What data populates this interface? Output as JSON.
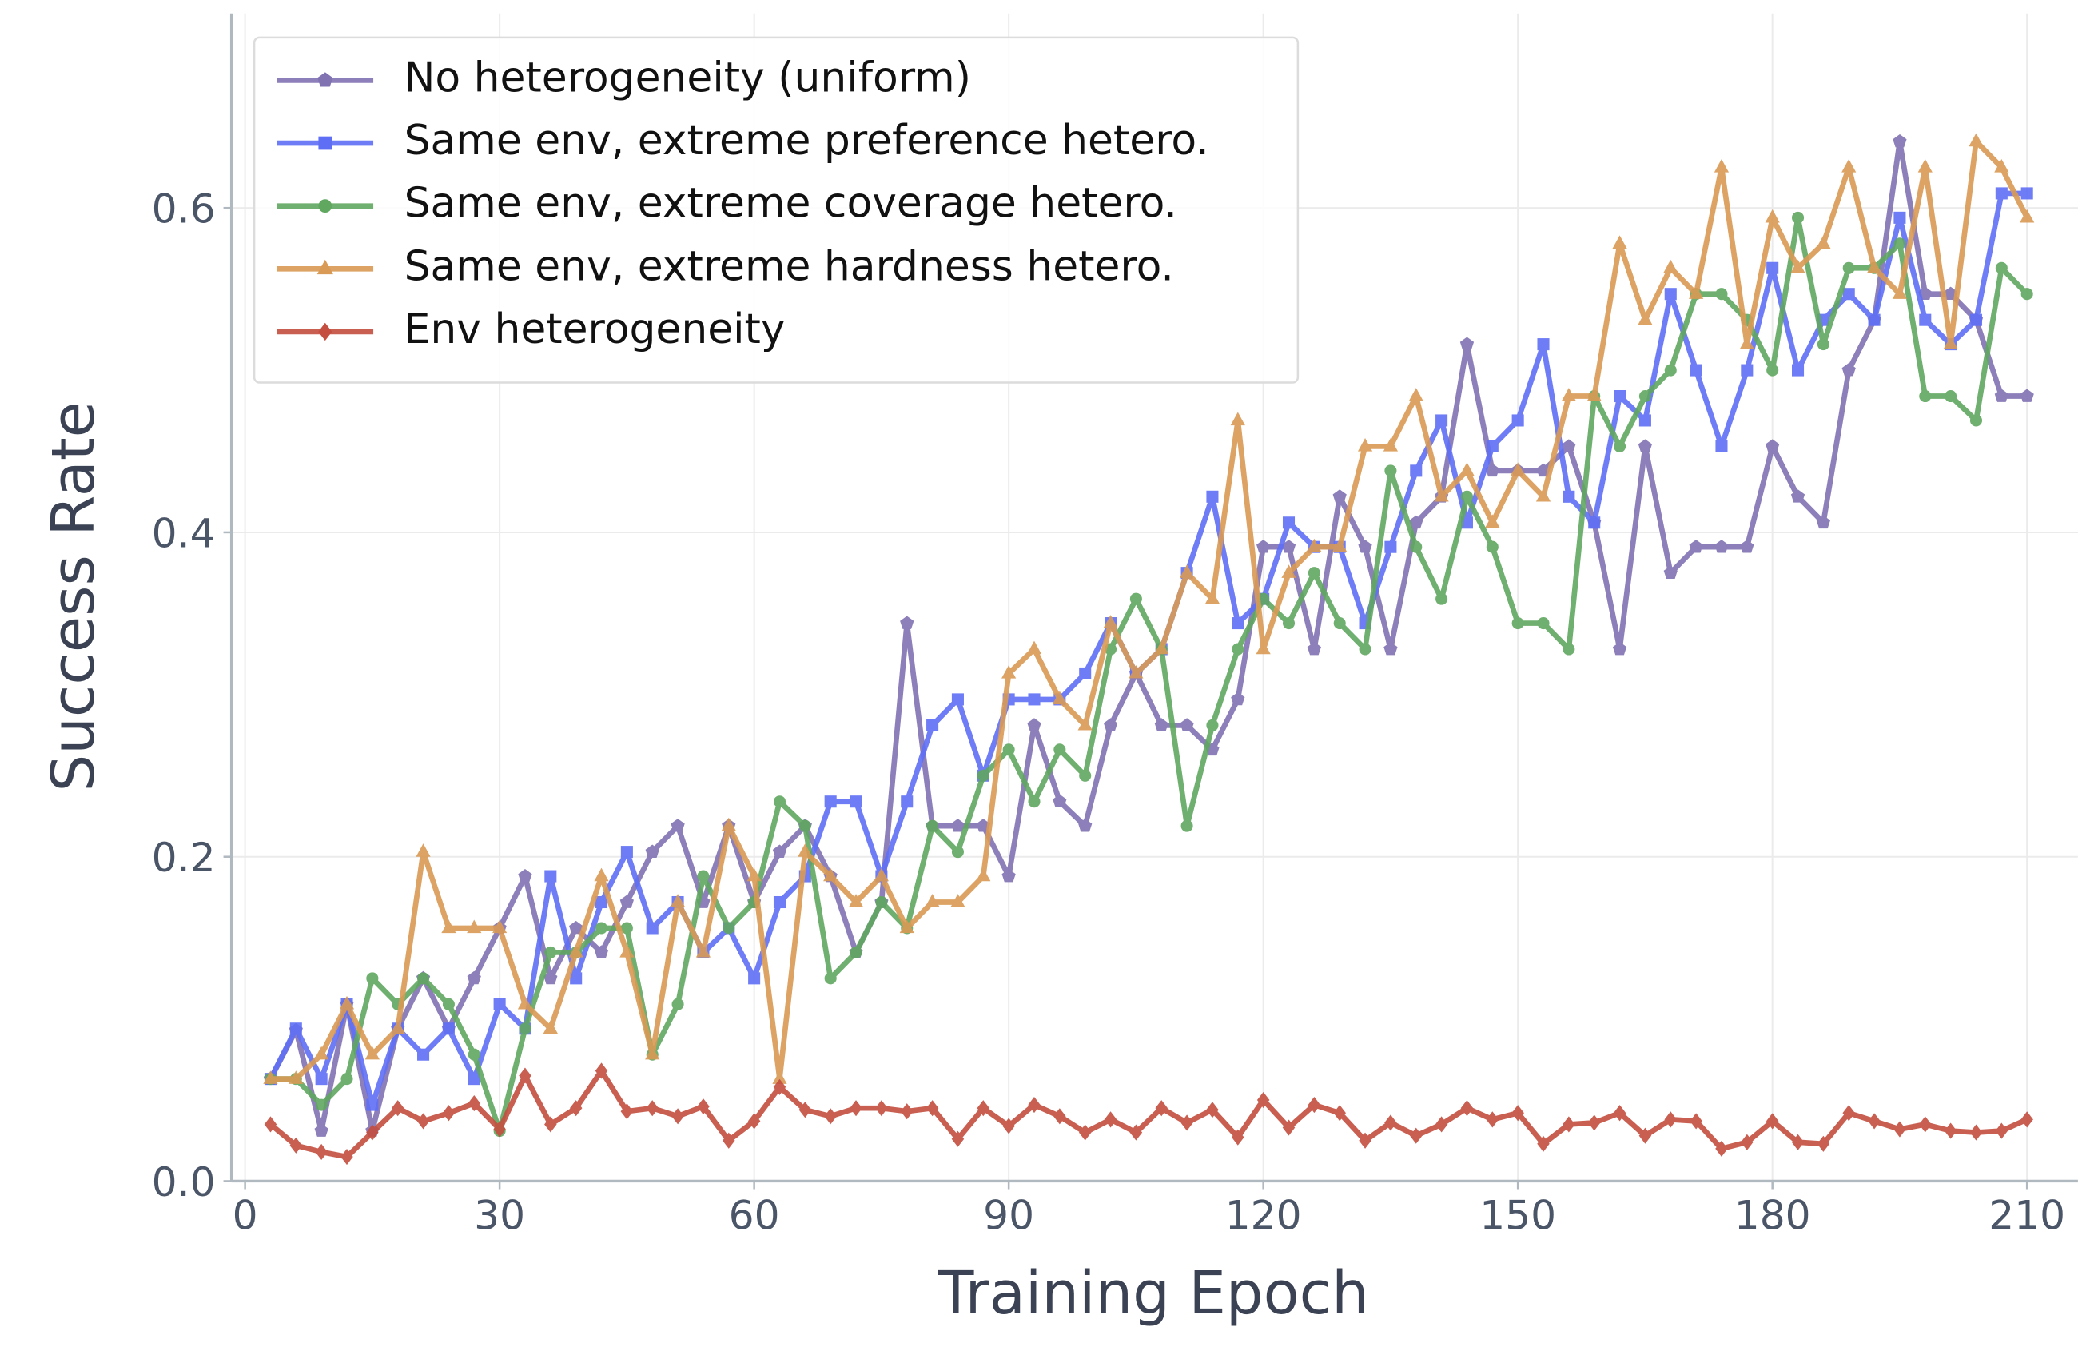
{
  "chart_data": {
    "type": "line",
    "x_label": "Training Epoch",
    "y_label": "Success Rate",
    "xlim": [
      -1.6,
      216
    ],
    "ylim": [
      0,
      0.72
    ],
    "xticks": [
      0,
      30,
      60,
      90,
      120,
      150,
      180,
      210
    ],
    "yticks": [
      {
        "value": 0,
        "label": "0.0"
      },
      0.2,
      0.4,
      0.6
    ],
    "grid": true,
    "legend": "upper left",
    "x": [
      3,
      6,
      9,
      12,
      15,
      18,
      21,
      24,
      27,
      30,
      33,
      36,
      39,
      42,
      45,
      48,
      51,
      54,
      57,
      60,
      63,
      66,
      69,
      72,
      75,
      78,
      81,
      84,
      87,
      90,
      93,
      96,
      99,
      102,
      105,
      108,
      111,
      114,
      117,
      120,
      123,
      126,
      129,
      132,
      135,
      138,
      141,
      144,
      147,
      150,
      153,
      156,
      159,
      162,
      165,
      168,
      171,
      174,
      177,
      180,
      183,
      186,
      189,
      192,
      195,
      198,
      201,
      204,
      207,
      210
    ],
    "series": [
      {
        "name": "No heterogeneity (uniform)",
        "color": "#8172b2",
        "marker": "pentagon",
        "values": [
          0.063,
          0.093,
          0.031,
          0.109,
          0.031,
          0.094,
          0.125,
          0.094,
          0.125,
          0.156,
          0.188,
          0.125,
          0.156,
          0.141,
          0.172,
          0.203,
          0.219,
          0.172,
          0.219,
          0.172,
          0.203,
          0.219,
          0.188,
          0.141,
          0.172,
          0.344,
          0.219,
          0.219,
          0.219,
          0.188,
          0.281,
          0.234,
          0.219,
          0.281,
          0.313,
          0.281,
          0.281,
          0.266,
          0.297,
          0.391,
          0.391,
          0.328,
          0.422,
          0.391,
          0.328,
          0.406,
          0.422,
          0.516,
          0.438,
          0.438,
          0.438,
          0.453,
          0.406,
          0.328,
          0.453,
          0.375,
          0.391,
          0.391,
          0.391,
          0.453,
          0.422,
          0.406,
          0.5,
          0.531,
          0.641,
          0.547,
          0.547,
          0.531,
          0.484,
          0.484
        ]
      },
      {
        "name": "Same env, extreme preference hetero.",
        "color": "#5f6ff5",
        "marker": "square",
        "values": [
          0.063,
          0.094,
          0.063,
          0.109,
          0.047,
          0.094,
          0.078,
          0.094,
          0.063,
          0.109,
          0.094,
          0.188,
          0.125,
          0.172,
          0.203,
          0.156,
          0.172,
          0.141,
          0.156,
          0.125,
          0.172,
          0.188,
          0.234,
          0.234,
          0.188,
          0.234,
          0.281,
          0.297,
          0.25,
          0.297,
          0.297,
          0.297,
          0.313,
          0.344,
          0.313,
          0.328,
          0.375,
          0.422,
          0.344,
          0.359,
          0.406,
          0.391,
          0.391,
          0.344,
          0.391,
          0.438,
          0.469,
          0.406,
          0.453,
          0.469,
          0.516,
          0.422,
          0.406,
          0.484,
          0.469,
          0.547,
          0.5,
          0.453,
          0.5,
          0.563,
          0.5,
          0.531,
          0.547,
          0.531,
          0.594,
          0.531,
          0.516,
          0.531,
          0.609,
          0.609
        ]
      },
      {
        "name": "Same env, extreme coverage hetero.",
        "color": "#60a760",
        "marker": "circle",
        "values": [
          0.063,
          0.063,
          0.047,
          0.063,
          0.125,
          0.109,
          0.125,
          0.109,
          0.078,
          0.031,
          0.094,
          0.141,
          0.141,
          0.156,
          0.156,
          0.078,
          0.109,
          0.188,
          0.156,
          0.172,
          0.234,
          0.219,
          0.125,
          0.141,
          0.172,
          0.156,
          0.219,
          0.203,
          0.25,
          0.266,
          0.234,
          0.266,
          0.25,
          0.328,
          0.359,
          0.328,
          0.219,
          0.281,
          0.328,
          0.359,
          0.344,
          0.375,
          0.344,
          0.328,
          0.438,
          0.391,
          0.359,
          0.422,
          0.391,
          0.344,
          0.344,
          0.328,
          0.484,
          0.453,
          0.484,
          0.5,
          0.547,
          0.547,
          0.531,
          0.5,
          0.594,
          0.516,
          0.563,
          0.563,
          0.578,
          0.484,
          0.484,
          0.469,
          0.563,
          0.547
        ]
      },
      {
        "name": "Same env, extreme hardness hetero.",
        "color": "#d99a55",
        "marker": "triangle",
        "values": [
          0.063,
          0.063,
          0.078,
          0.109,
          0.078,
          0.094,
          0.203,
          0.156,
          0.156,
          0.156,
          0.109,
          0.094,
          0.141,
          0.188,
          0.141,
          0.078,
          0.172,
          0.141,
          0.219,
          0.188,
          0.063,
          0.203,
          0.188,
          0.172,
          0.188,
          0.156,
          0.172,
          0.172,
          0.188,
          0.313,
          0.328,
          0.297,
          0.281,
          0.344,
          0.313,
          0.328,
          0.375,
          0.359,
          0.469,
          0.328,
          0.375,
          0.391,
          0.391,
          0.453,
          0.453,
          0.484,
          0.422,
          0.438,
          0.406,
          0.438,
          0.422,
          0.484,
          0.484,
          0.578,
          0.531,
          0.563,
          0.547,
          0.625,
          0.516,
          0.594,
          0.563,
          0.578,
          0.625,
          0.563,
          0.547,
          0.625,
          0.516,
          0.641,
          0.625,
          0.594
        ]
      },
      {
        "name": "Env heterogeneity",
        "color": "#c44e3f",
        "marker": "diamond",
        "values": [
          0.035,
          0.022,
          0.018,
          0.015,
          0.03,
          0.045,
          0.037,
          0.042,
          0.048,
          0.032,
          0.065,
          0.035,
          0.045,
          0.068,
          0.043,
          0.045,
          0.04,
          0.046,
          0.025,
          0.037,
          0.058,
          0.044,
          0.04,
          0.045,
          0.045,
          0.043,
          0.045,
          0.026,
          0.045,
          0.034,
          0.047,
          0.04,
          0.03,
          0.038,
          0.03,
          0.045,
          0.036,
          0.044,
          0.027,
          0.05,
          0.033,
          0.047,
          0.042,
          0.025,
          0.036,
          0.028,
          0.035,
          0.045,
          0.038,
          0.042,
          0.023,
          0.035,
          0.036,
          0.042,
          0.028,
          0.038,
          0.037,
          0.02,
          0.024,
          0.037,
          0.024,
          0.023,
          0.042,
          0.037,
          0.032,
          0.035,
          0.031,
          0.03,
          0.031,
          0.038
        ]
      }
    ]
  }
}
